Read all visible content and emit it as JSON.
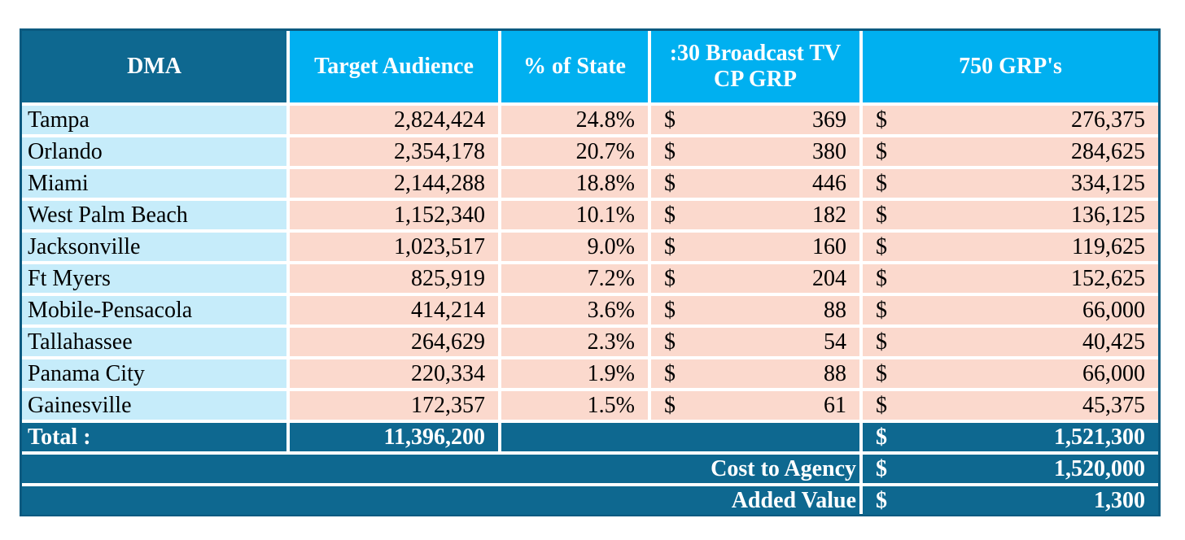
{
  "headers": {
    "dma": "DMA",
    "target_audience": "Target Audience",
    "pct_state": "% of State",
    "broadcast_line1": ":30 Broadcast TV",
    "broadcast_line2": "CP GRP",
    "grps": "750 GRP's"
  },
  "currency_symbol": "$",
  "rows": [
    {
      "dma": "Tampa",
      "audience": "2,824,424",
      "pct": "24.8%",
      "cpgrp": "369",
      "grp": "276,375"
    },
    {
      "dma": "Orlando",
      "audience": "2,354,178",
      "pct": "20.7%",
      "cpgrp": "380",
      "grp": "284,625"
    },
    {
      "dma": "Miami",
      "audience": "2,144,288",
      "pct": "18.8%",
      "cpgrp": "446",
      "grp": "334,125"
    },
    {
      "dma": "West Palm Beach",
      "audience": "1,152,340",
      "pct": "10.1%",
      "cpgrp": "182",
      "grp": "136,125"
    },
    {
      "dma": "Jacksonville",
      "audience": "1,023,517",
      "pct": "9.0%",
      "cpgrp": "160",
      "grp": "119,625"
    },
    {
      "dma": "Ft Myers",
      "audience": "825,919",
      "pct": "7.2%",
      "cpgrp": "204",
      "grp": "152,625"
    },
    {
      "dma": "Mobile-Pensacola",
      "audience": "414,214",
      "pct": "3.6%",
      "cpgrp": "88",
      "grp": "66,000"
    },
    {
      "dma": "Tallahassee",
      "audience": "264,629",
      "pct": "2.3%",
      "cpgrp": "54",
      "grp": "40,425"
    },
    {
      "dma": "Panama City",
      "audience": "220,334",
      "pct": "1.9%",
      "cpgrp": "88",
      "grp": "66,000"
    },
    {
      "dma": "Gainesville",
      "audience": "172,357",
      "pct": "1.5%",
      "cpgrp": "61",
      "grp": "45,375"
    }
  ],
  "total": {
    "label": "Total  :",
    "audience": "11,396,200",
    "grp": "1,521,300"
  },
  "cost_to_agency": {
    "label": "Cost to Agency",
    "value": "1,520,000"
  },
  "added_value": {
    "label": "Added Value",
    "value": "1,300"
  },
  "colors": {
    "header_dark": "#0e6890",
    "header_light": "#00b0f0",
    "dma_cell": "#c6ecfa",
    "data_cell": "#fbd9cd"
  }
}
